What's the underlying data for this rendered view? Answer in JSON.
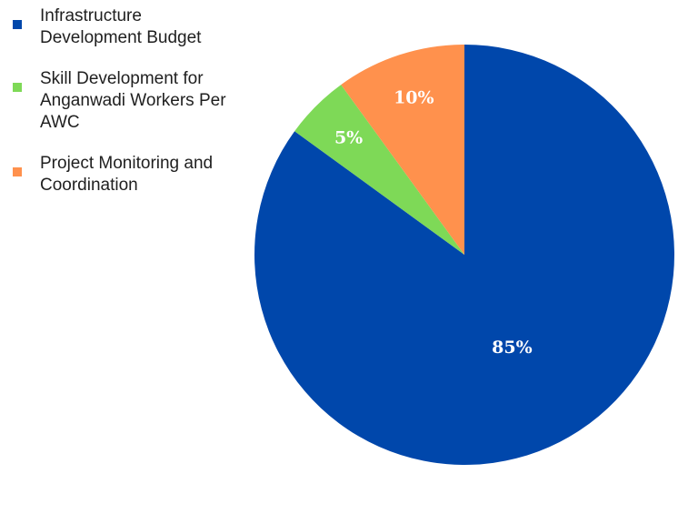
{
  "chart_data": {
    "type": "pie",
    "categories": [
      "Infrastructure Development Budget",
      "Skill Development for Anganwadi Workers Per AWC",
      "Project Monitoring and Coordination"
    ],
    "values": [
      85,
      5,
      10
    ],
    "data_labels": [
      "85%",
      "5%",
      "10%"
    ],
    "colors": [
      "#0047ab",
      "#7ed957",
      "#ff914d"
    ],
    "legend": {
      "placement": "left",
      "entries": [
        {
          "lines": [
            "Infrastructure",
            "Development Budget"
          ],
          "color": "#0047ab"
        },
        {
          "lines": [
            "Skill Development for",
            "Anganwadi Workers Per",
            "AWC"
          ],
          "color": "#7ed957"
        },
        {
          "lines": [
            "Project Monitoring and",
            "Coordination"
          ],
          "color": "#ff914d"
        }
      ]
    },
    "start_angle": "12 o'clock",
    "direction": "clockwise"
  }
}
